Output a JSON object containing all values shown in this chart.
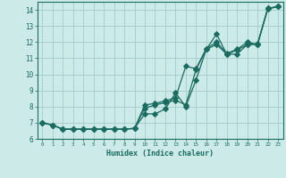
{
  "xlabel": "Humidex (Indice chaleur)",
  "ylabel": "",
  "bg_color": "#cceae7",
  "grid_color": "#aacfcc",
  "line_color": "#1a6b60",
  "xlim": [
    -0.5,
    23.5
  ],
  "ylim": [
    6,
    14.5
  ],
  "xticks": [
    0,
    1,
    2,
    3,
    4,
    5,
    6,
    7,
    8,
    9,
    10,
    11,
    12,
    13,
    14,
    15,
    16,
    17,
    18,
    19,
    20,
    21,
    22,
    23
  ],
  "yticks": [
    6,
    7,
    8,
    9,
    10,
    11,
    12,
    13,
    14
  ],
  "series1_x": [
    0,
    1,
    2,
    3,
    4,
    5,
    6,
    7,
    8,
    9,
    10,
    11,
    12,
    13,
    14,
    15,
    16,
    17,
    18,
    19,
    20,
    21,
    22,
    23
  ],
  "series1_y": [
    7.0,
    6.85,
    6.6,
    6.6,
    6.6,
    6.6,
    6.6,
    6.6,
    6.6,
    6.65,
    7.9,
    8.1,
    8.25,
    8.4,
    8.1,
    10.3,
    11.55,
    11.85,
    11.25,
    11.5,
    11.85,
    11.85,
    14.1,
    14.2
  ],
  "series2_x": [
    0,
    1,
    2,
    3,
    4,
    5,
    6,
    7,
    8,
    9,
    10,
    11,
    12,
    13,
    14,
    15,
    16,
    17,
    18,
    19,
    20,
    21,
    22,
    23
  ],
  "series2_y": [
    7.0,
    6.85,
    6.6,
    6.6,
    6.6,
    6.6,
    6.6,
    6.6,
    6.6,
    6.65,
    8.1,
    8.2,
    8.35,
    8.55,
    10.5,
    10.35,
    11.6,
    12.0,
    11.3,
    11.55,
    12.0,
    11.85,
    14.05,
    14.2
  ],
  "series3_x": [
    0,
    1,
    2,
    3,
    4,
    5,
    6,
    7,
    8,
    9,
    10,
    11,
    12,
    13,
    14,
    15,
    16,
    17,
    18,
    19,
    20,
    21,
    22,
    23
  ],
  "series3_y": [
    7.0,
    6.85,
    6.6,
    6.6,
    6.6,
    6.6,
    6.6,
    6.6,
    6.6,
    6.65,
    7.55,
    7.55,
    7.85,
    8.85,
    8.0,
    9.65,
    11.55,
    12.5,
    11.25,
    11.25,
    11.85,
    11.9,
    14.1,
    14.2
  ]
}
